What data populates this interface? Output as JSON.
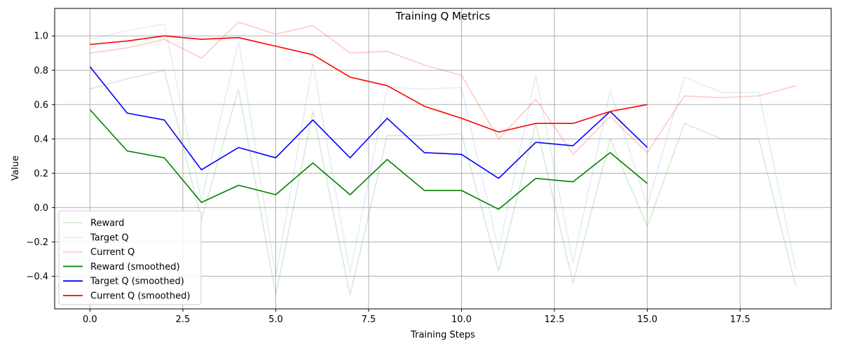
{
  "chart_data": {
    "type": "line",
    "title": "Training Q Metrics",
    "xlabel": "Training Steps",
    "ylabel": "Value",
    "xlim": [
      -0.95,
      19.95
    ],
    "ylim": [
      -0.59,
      1.16
    ],
    "xticks": [
      0,
      2.5,
      5,
      7.5,
      10,
      12.5,
      15,
      17.5
    ],
    "xtick_labels": [
      "0.0",
      "2.5",
      "5.0",
      "7.5",
      "10.0",
      "12.5",
      "15.0",
      "17.5"
    ],
    "yticks": [
      -0.4,
      -0.2,
      0.0,
      0.2,
      0.4,
      0.6,
      0.8,
      1.0
    ],
    "ytick_labels": [
      "−0.4",
      "−0.2",
      "0.0",
      "0.2",
      "0.4",
      "0.6",
      "0.8",
      "1.0"
    ],
    "grid": true,
    "legend_position": "lower-left",
    "series": [
      {
        "name": "Reward",
        "color": "#2ca02c",
        "opacity": 0.2,
        "x": [
          0,
          1,
          2,
          3,
          4,
          5,
          6,
          7,
          8,
          9,
          10,
          11,
          12,
          13,
          14,
          15,
          16,
          17,
          18,
          19
        ],
        "values": [
          0.69,
          0.75,
          0.8,
          -0.07,
          0.69,
          -0.51,
          0.56,
          -0.51,
          0.42,
          0.42,
          0.43,
          -0.37,
          0.49,
          -0.44,
          0.4,
          -0.11,
          0.49,
          0.4,
          0.4,
          -0.46
        ]
      },
      {
        "name": "Target Q",
        "color": "#1f77b4",
        "opacity": 0.12,
        "x": [
          0,
          1,
          2,
          3,
          4,
          5,
          6,
          7,
          8,
          9,
          10,
          11,
          12,
          13,
          14,
          15,
          16,
          17,
          18,
          19
        ],
        "values": [
          0.98,
          1.03,
          1.07,
          0.04,
          0.97,
          -0.4,
          0.84,
          -0.38,
          0.7,
          0.69,
          0.7,
          -0.25,
          0.77,
          -0.32,
          0.68,
          0.01,
          0.76,
          0.67,
          0.67,
          -0.36
        ]
      },
      {
        "name": "Current Q",
        "color": "#ff2a1a",
        "opacity": 0.25,
        "x": [
          0,
          1,
          2,
          3,
          4,
          5,
          6,
          7,
          8,
          9,
          10,
          11,
          12,
          13,
          14,
          15,
          16,
          17,
          18,
          19
        ],
        "values": [
          0.9,
          0.93,
          0.98,
          0.87,
          1.08,
          1.01,
          1.06,
          0.9,
          0.91,
          0.83,
          0.77,
          0.4,
          0.63,
          0.31,
          0.53,
          0.32,
          0.65,
          0.64,
          0.65,
          0.71
        ]
      },
      {
        "name": "Reward (smoothed)",
        "color": "#008000",
        "opacity": 1,
        "x": [
          0,
          1,
          2,
          3,
          4,
          5,
          6,
          7,
          8,
          9,
          10,
          11,
          12,
          13,
          14,
          15
        ],
        "values": [
          0.57,
          0.33,
          0.29,
          0.03,
          0.13,
          0.075,
          0.26,
          0.075,
          0.28,
          0.1,
          0.1,
          -0.01,
          0.17,
          0.15,
          0.32,
          0.14
        ]
      },
      {
        "name": "Target Q (smoothed)",
        "color": "#0000ff",
        "opacity": 1,
        "x": [
          0,
          1,
          2,
          3,
          4,
          5,
          6,
          7,
          8,
          9,
          10,
          11,
          12,
          13,
          14,
          15
        ],
        "values": [
          0.82,
          0.55,
          0.51,
          0.22,
          0.35,
          0.29,
          0.51,
          0.29,
          0.52,
          0.32,
          0.31,
          0.17,
          0.38,
          0.36,
          0.56,
          0.35
        ]
      },
      {
        "name": "Current Q (smoothed)",
        "color": "#ff0000",
        "opacity": 1,
        "x": [
          0,
          1,
          2,
          3,
          4,
          5,
          6,
          7,
          8,
          9,
          10,
          11,
          12,
          13,
          14,
          15
        ],
        "values": [
          0.95,
          0.97,
          1.0,
          0.98,
          0.99,
          0.94,
          0.89,
          0.76,
          0.71,
          0.59,
          0.52,
          0.44,
          0.49,
          0.49,
          0.56,
          0.6
        ]
      }
    ]
  }
}
